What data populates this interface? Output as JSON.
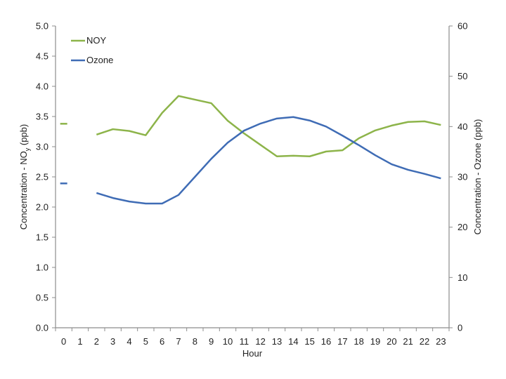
{
  "chart_data": {
    "type": "line",
    "title": "",
    "xlabel": "Hour",
    "ylabel": "Concentration - NOy (ppb)",
    "ylabel_parts": {
      "prefix": "Concentration - NO",
      "sub": "y",
      "suffix": " (ppb)"
    },
    "y2label": "Concentration - Ozone (ppb)",
    "categories": [
      "0",
      "1",
      "2",
      "3",
      "4",
      "5",
      "6",
      "7",
      "8",
      "9",
      "10",
      "11",
      "12",
      "13",
      "14",
      "15",
      "16",
      "17",
      "18",
      "19",
      "20",
      "21",
      "22",
      "23"
    ],
    "ylim": [
      0,
      5
    ],
    "y2lim": [
      0,
      60
    ],
    "yticks": [
      "0.0",
      "0.5",
      "1.0",
      "1.5",
      "2.0",
      "2.5",
      "3.0",
      "3.5",
      "4.0",
      "4.5",
      "5.0"
    ],
    "y2ticks": [
      "0",
      "10",
      "20",
      "30",
      "40",
      "50",
      "60"
    ],
    "grid": false,
    "legend_position": "upper-left-inside",
    "series": [
      {
        "name": "NOY",
        "axis": "left",
        "color": "#8DB44A",
        "values": [
          3.38,
          null,
          3.2,
          3.29,
          3.26,
          3.19,
          3.56,
          3.84,
          3.78,
          3.72,
          3.43,
          3.22,
          3.03,
          2.84,
          2.85,
          2.84,
          2.92,
          2.94,
          3.14,
          3.27,
          3.35,
          3.41,
          3.42,
          3.36
        ]
      },
      {
        "name": "Ozone",
        "axis": "right",
        "color": "#3F6CB5",
        "values": [
          28.7,
          null,
          26.8,
          25.8,
          25.1,
          24.7,
          24.7,
          26.4,
          30.0,
          33.6,
          36.8,
          39.2,
          40.6,
          41.6,
          41.9,
          41.2,
          40.0,
          38.2,
          36.3,
          34.3,
          32.5,
          31.4,
          30.6,
          29.7
        ]
      }
    ]
  }
}
